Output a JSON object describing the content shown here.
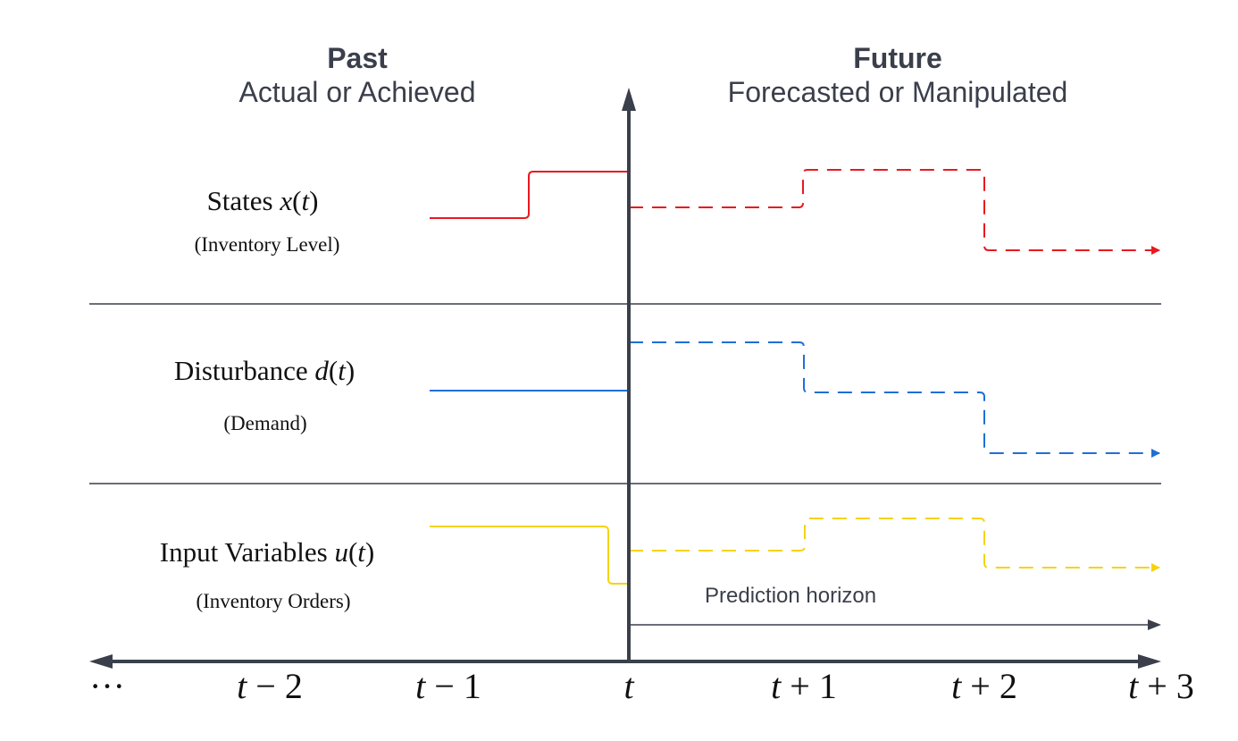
{
  "header": {
    "past_title": "Past",
    "past_subtitle": "Actual or Achieved",
    "future_title": "Future",
    "future_subtitle": "Forecasted or Manipulated"
  },
  "rows": [
    {
      "name": "States ",
      "var": "x",
      "paren_open": "(",
      "arg": "t",
      "paren_close": ")",
      "description": "(Inventory Level)",
      "color": "#e8191f"
    },
    {
      "name": "Disturbance ",
      "var": "d",
      "paren_open": "(",
      "arg": "t",
      "paren_close": ")",
      "description": "(Demand)",
      "color": "#1f6fd6"
    },
    {
      "name": "Input Variables ",
      "var": "u",
      "paren_open": "(",
      "arg": "t",
      "paren_close": ")",
      "description": "(Inventory Orders)",
      "color": "#f5d314"
    }
  ],
  "axis": {
    "ellipsis": "···",
    "ticks": [
      {
        "var": "t",
        "op": " − ",
        "num": "2"
      },
      {
        "var": "t",
        "op": " − ",
        "num": "1"
      },
      {
        "var": "t",
        "op": "",
        "num": ""
      },
      {
        "var": "t",
        "op": " + ",
        "num": "1"
      },
      {
        "var": "t",
        "op": " + ",
        "num": "2"
      },
      {
        "var": "t",
        "op": " + ",
        "num": "3"
      }
    ],
    "axis_color": "#3a3f4b"
  },
  "prediction_horizon": "Prediction horizon"
}
